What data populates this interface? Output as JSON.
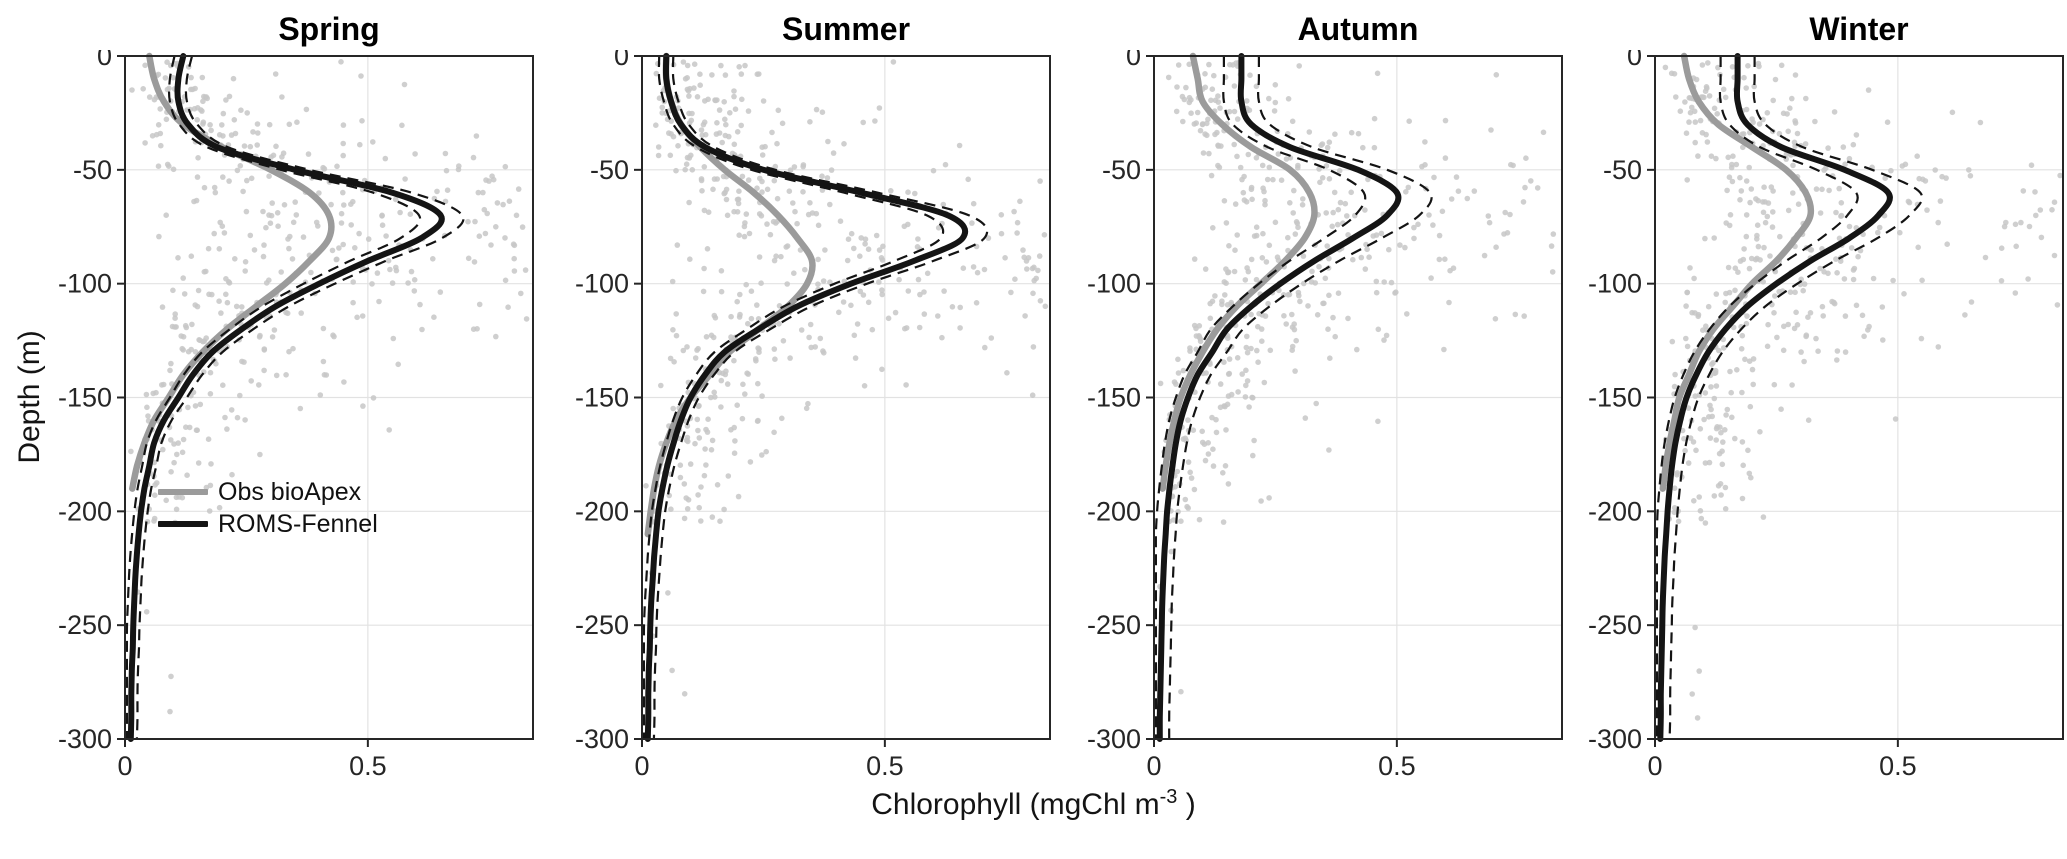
{
  "figure": {
    "background": "#ffffff",
    "ylabel": "Depth (m)",
    "xlabel_text": "Chlorophyll (mgChl m⁻³ )",
    "xlabel_prefix": "Chlorophyll (mgChl m",
    "xlabel_sup": "-3",
    "xlabel_suffix": " )",
    "legend": {
      "items": [
        {
          "label": "Obs bioApex",
          "color": "#9b9b9b"
        },
        {
          "label": "ROMS-Fennel",
          "color": "#141414"
        }
      ]
    }
  },
  "chart_data": {
    "type": "line",
    "xlabel": "Chlorophyll (mgChl m⁻³)",
    "ylabel": "Depth (m)",
    "xlim": [
      0,
      0.84
    ],
    "ylim": [
      -300,
      0
    ],
    "xticks": [
      0,
      0.5
    ],
    "yticks": [
      0,
      -50,
      -100,
      -150,
      -200,
      -250,
      -300
    ],
    "grid": true,
    "legend_position": "lower-left of first panel",
    "colors": {
      "model": "#141414",
      "obs": "#9b9b9b",
      "scatter": "#c7c7c7",
      "grid": "#e2e2e2",
      "axis": "#262626"
    },
    "series_meta": [
      {
        "key": "obs",
        "label": "Obs bioApex",
        "style": "solid-thick",
        "color": "#9b9b9b"
      },
      {
        "key": "model",
        "label": "ROMS-Fennel",
        "style": "solid-thick",
        "color": "#141414"
      },
      {
        "key": "model_band",
        "style": "dashed",
        "color": "#141414"
      },
      {
        "key": "scatter",
        "style": "dots",
        "color": "#c7c7c7"
      }
    ],
    "scatter_model": {
      "sigma": 0.62,
      "center_offset": 0.05,
      "radius": 2.8,
      "opacity": 0.85
    },
    "depths": [
      0,
      -10,
      -20,
      -30,
      -40,
      -50,
      -60,
      -70,
      -80,
      -90,
      -100,
      -110,
      -120,
      -130,
      -140,
      -150,
      -160,
      -170,
      -180,
      -190,
      -200,
      -210,
      -220,
      -230,
      -240,
      -250,
      -260,
      -270,
      -280,
      -290,
      -300
    ],
    "panels": [
      {
        "title": "Spring",
        "seed": 7,
        "band_scale": 0.05,
        "band_offset": 0.012,
        "model": [
          0.12,
          0.11,
          0.11,
          0.13,
          0.19,
          0.35,
          0.55,
          0.65,
          0.61,
          0.5,
          0.4,
          0.31,
          0.24,
          0.18,
          0.14,
          0.11,
          0.08,
          0.06,
          0.05,
          0.04,
          0.033,
          0.028,
          0.024,
          0.021,
          0.019,
          0.017,
          0.016,
          0.014,
          0.013,
          0.013,
          0.012
        ],
        "obs": [
          0.05,
          0.06,
          0.08,
          0.12,
          0.2,
          0.3,
          0.38,
          0.42,
          0.42,
          0.38,
          0.33,
          0.27,
          0.21,
          0.16,
          0.12,
          0.09,
          0.06,
          0.04,
          0.025,
          0.015,
          null,
          null,
          null,
          null,
          null,
          null,
          null,
          null,
          null,
          null,
          null
        ]
      },
      {
        "title": "Summer",
        "seed": 13,
        "band_scale": 0.05,
        "band_offset": 0.012,
        "model": [
          0.05,
          0.05,
          0.06,
          0.08,
          0.13,
          0.25,
          0.45,
          0.63,
          0.66,
          0.56,
          0.43,
          0.32,
          0.24,
          0.17,
          0.13,
          0.1,
          0.08,
          0.065,
          0.052,
          0.042,
          0.034,
          0.029,
          0.025,
          0.022,
          0.019,
          0.017,
          0.016,
          0.014,
          0.013,
          0.013,
          0.012
        ],
        "obs": [
          0.05,
          0.05,
          0.06,
          0.08,
          0.12,
          0.17,
          0.23,
          0.28,
          0.32,
          0.35,
          0.34,
          0.3,
          0.24,
          0.18,
          0.14,
          0.1,
          0.07,
          0.05,
          0.035,
          0.025,
          0.018,
          0.012,
          null,
          null,
          null,
          null,
          null,
          null,
          null,
          null,
          null
        ]
      },
      {
        "title": "Autumn",
        "seed": 21,
        "band_scale": 0.1,
        "band_offset": 0.018,
        "model": [
          0.18,
          0.18,
          0.18,
          0.2,
          0.28,
          0.42,
          0.5,
          0.48,
          0.41,
          0.33,
          0.26,
          0.2,
          0.15,
          0.12,
          0.09,
          0.07,
          0.055,
          0.045,
          0.038,
          0.032,
          0.027,
          0.024,
          0.021,
          0.019,
          0.017,
          0.016,
          0.015,
          0.014,
          0.013,
          0.012,
          0.012
        ],
        "obs": [
          0.08,
          0.09,
          0.1,
          0.14,
          0.2,
          0.28,
          0.32,
          0.33,
          0.31,
          0.27,
          0.22,
          0.17,
          0.13,
          0.1,
          0.075,
          0.055,
          0.042,
          0.032,
          0.024,
          0.018,
          null,
          null,
          null,
          null,
          null,
          null,
          null,
          null,
          null,
          null,
          null
        ]
      },
      {
        "title": "Winter",
        "seed": 42,
        "band_scale": 0.1,
        "band_offset": 0.018,
        "model": [
          0.17,
          0.17,
          0.17,
          0.19,
          0.26,
          0.39,
          0.48,
          0.46,
          0.4,
          0.32,
          0.25,
          0.19,
          0.145,
          0.11,
          0.085,
          0.065,
          0.052,
          0.042,
          0.035,
          0.03,
          0.026,
          0.023,
          0.02,
          0.018,
          0.016,
          0.015,
          0.014,
          0.013,
          0.012,
          0.012,
          0.011
        ],
        "obs": [
          0.06,
          0.07,
          0.09,
          0.13,
          0.2,
          0.27,
          0.31,
          0.32,
          0.29,
          0.25,
          0.2,
          0.16,
          0.12,
          0.09,
          0.07,
          0.05,
          0.04,
          0.03,
          0.022,
          0.016,
          null,
          null,
          null,
          null,
          null,
          null,
          null,
          null,
          null,
          null,
          null
        ]
      }
    ]
  }
}
